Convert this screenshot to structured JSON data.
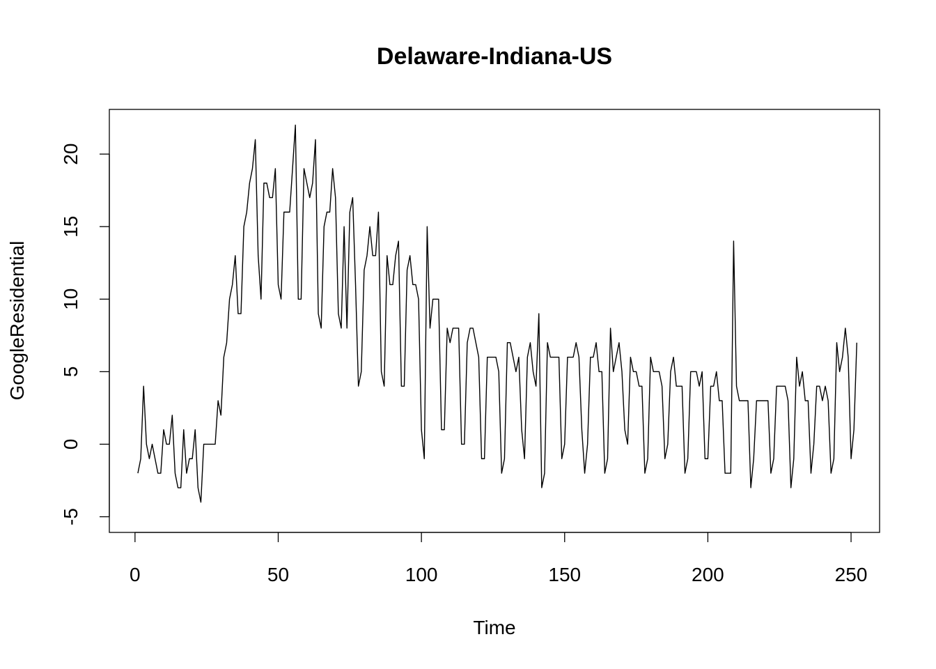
{
  "chart_data": {
    "type": "line",
    "title": "Delaware-Indiana-US",
    "xlabel": "Time",
    "ylabel": "GoogleResidential",
    "xlim": [
      1,
      250
    ],
    "ylim": [
      -5,
      22
    ],
    "x_ticks": [
      0,
      50,
      100,
      150,
      200,
      250
    ],
    "y_ticks": [
      -5,
      0,
      5,
      10,
      15,
      20
    ],
    "x_tick_labels": [
      "0",
      "50",
      "100",
      "150",
      "200",
      "250"
    ],
    "y_tick_labels": [
      "-5",
      "0",
      "5",
      "10",
      "15",
      "20"
    ],
    "grid": false,
    "legend": "none",
    "line_color": "#000000",
    "series": [
      {
        "x_start": 1,
        "values": [
          -2,
          -1,
          4,
          0,
          -1,
          0,
          -1,
          -2,
          -2,
          1,
          0,
          0,
          2,
          -2,
          -3,
          -3,
          1,
          -2,
          -1,
          -1,
          1,
          -3,
          -4,
          0,
          0,
          0,
          0,
          0,
          3,
          2,
          6,
          7,
          10,
          11,
          13,
          9,
          9,
          15,
          16,
          18,
          19,
          21,
          13,
          10,
          18,
          18,
          17,
          17,
          19,
          11,
          10,
          16,
          16,
          16,
          19,
          22,
          10,
          10,
          19,
          18,
          17,
          18,
          21,
          9,
          8,
          15,
          16,
          16,
          19,
          17,
          9,
          8,
          15,
          8,
          16,
          17,
          11,
          4,
          5,
          12,
          13,
          15,
          13,
          13,
          16,
          5,
          4,
          13,
          11,
          11,
          13,
          14,
          4,
          4,
          12,
          13,
          11,
          11,
          10,
          1,
          -1,
          15,
          8,
          10,
          10,
          10,
          1,
          1,
          8,
          7,
          8,
          8,
          8,
          0,
          0,
          7,
          8,
          8,
          7,
          6,
          -1,
          -1,
          6,
          6,
          6,
          6,
          5,
          -2,
          -1,
          7,
          7,
          6,
          5,
          6,
          1,
          -1,
          6,
          7,
          5,
          4,
          9,
          -3,
          -2,
          7,
          6,
          6,
          6,
          6,
          -1,
          0,
          6,
          6,
          6,
          7,
          6,
          1,
          -2,
          0,
          6,
          6,
          7,
          5,
          5,
          -2,
          -1,
          8,
          5,
          6,
          7,
          5,
          1,
          0,
          6,
          5,
          5,
          4,
          4,
          -2,
          -1,
          6,
          5,
          5,
          5,
          4,
          -1,
          0,
          5,
          6,
          4,
          4,
          4,
          -2,
          -1,
          5,
          5,
          5,
          4,
          5,
          -1,
          -1,
          4,
          4,
          5,
          3,
          3,
          -2,
          -2,
          -2,
          14,
          4,
          3,
          3,
          3,
          3,
          -3,
          -1,
          3,
          3,
          3,
          3,
          3,
          -2,
          -1,
          4,
          4,
          4,
          4,
          3,
          -3,
          -1,
          6,
          4,
          5,
          3,
          3,
          -2,
          0,
          4,
          4,
          3,
          4,
          3,
          -2,
          -1,
          7,
          5,
          6,
          8,
          6,
          -1,
          1,
          7
        ]
      }
    ]
  }
}
